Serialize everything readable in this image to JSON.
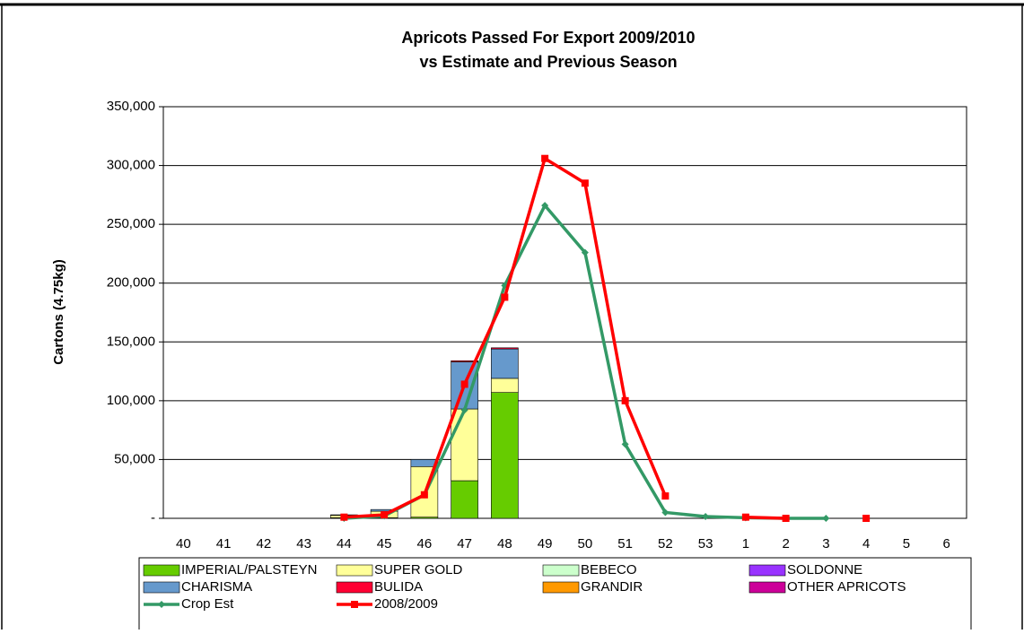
{
  "chart_data": {
    "type": "bar",
    "title": [
      "Apricots Passed For Export 2009/2010",
      "vs Estimate and Previous Season"
    ],
    "y_axis_label": "Cartons (4.75kg)",
    "categories": [
      "40",
      "41",
      "42",
      "43",
      "44",
      "45",
      "46",
      "47",
      "48",
      "49",
      "50",
      "51",
      "52",
      "53",
      "1",
      "2",
      "3",
      "4",
      "5",
      "6"
    ],
    "stacked": true,
    "ylim": [
      0,
      350000
    ],
    "yticks": [
      {
        "value": 0,
        "label": "-"
      },
      {
        "value": 50000,
        "label": "50,000"
      },
      {
        "value": 100000,
        "label": "100,000"
      },
      {
        "value": 150000,
        "label": "150,000"
      },
      {
        "value": 200000,
        "label": "200,000"
      },
      {
        "value": 250000,
        "label": "250,000"
      },
      {
        "value": 300000,
        "label": "300,000"
      },
      {
        "value": 350000,
        "label": "350,000"
      }
    ],
    "grid": true,
    "legend": "bottom",
    "series": [
      {
        "name": "IMPERIAL/PALSTEYN",
        "type": "bar",
        "color": "#66cc00",
        "values": [
          0,
          0,
          0,
          0,
          500,
          500,
          1000,
          32000,
          107000,
          0,
          0,
          0,
          0,
          0,
          0,
          0,
          0,
          0,
          0,
          0
        ]
      },
      {
        "name": "SUPER GOLD",
        "type": "bar",
        "color": "#ffff99",
        "values": [
          0,
          0,
          0,
          0,
          2000,
          5500,
          43000,
          61000,
          12000,
          0,
          0,
          0,
          0,
          0,
          0,
          0,
          0,
          0,
          0,
          0
        ]
      },
      {
        "name": "BEBECO",
        "type": "bar",
        "color": "#ccffcc",
        "values": [
          0,
          0,
          0,
          0,
          0,
          0,
          0,
          0,
          0,
          0,
          0,
          0,
          0,
          0,
          0,
          0,
          0,
          0,
          0,
          0
        ]
      },
      {
        "name": "SOLDONNE",
        "type": "bar",
        "color": "#9933ff",
        "values": [
          0,
          0,
          0,
          0,
          0,
          0,
          0,
          0,
          0,
          0,
          0,
          0,
          0,
          0,
          0,
          0,
          0,
          0,
          0,
          0
        ]
      },
      {
        "name": "CHARISMA",
        "type": "bar",
        "color": "#6699cc",
        "values": [
          0,
          0,
          0,
          0,
          500,
          1500,
          6000,
          40000,
          25000,
          0,
          0,
          0,
          0,
          0,
          0,
          0,
          0,
          0,
          0,
          0
        ]
      },
      {
        "name": "BULIDA",
        "type": "bar",
        "color": "#ff0033",
        "values": [
          0,
          0,
          0,
          0,
          0,
          0,
          0,
          1000,
          1000,
          0,
          0,
          0,
          0,
          0,
          0,
          0,
          0,
          0,
          0,
          0
        ]
      },
      {
        "name": "GRANDIR",
        "type": "bar",
        "color": "#ff9900",
        "values": [
          0,
          0,
          0,
          0,
          0,
          0,
          0,
          0,
          0,
          0,
          0,
          0,
          0,
          0,
          0,
          0,
          0,
          0,
          0,
          0
        ]
      },
      {
        "name": "OTHER APRICOTS",
        "type": "bar",
        "color": "#cc0099",
        "values": [
          0,
          0,
          0,
          0,
          0,
          0,
          0,
          0,
          0,
          0,
          0,
          0,
          0,
          0,
          0,
          0,
          0,
          0,
          0,
          0
        ]
      },
      {
        "name": "Crop Est",
        "type": "line",
        "marker": "diamond",
        "color": "#339966",
        "values": [
          null,
          null,
          null,
          null,
          0,
          2000,
          20000,
          92000,
          198000,
          266000,
          226000,
          63000,
          5000,
          1500,
          500,
          0,
          0,
          null,
          null,
          null
        ]
      },
      {
        "name": "2008/2009",
        "type": "line",
        "marker": "square",
        "color": "#ff0000",
        "values": [
          null,
          null,
          null,
          null,
          1000,
          3000,
          20000,
          114000,
          188000,
          306000,
          285000,
          100000,
          19000,
          null,
          1000,
          0,
          null,
          0,
          null,
          null
        ]
      }
    ]
  }
}
